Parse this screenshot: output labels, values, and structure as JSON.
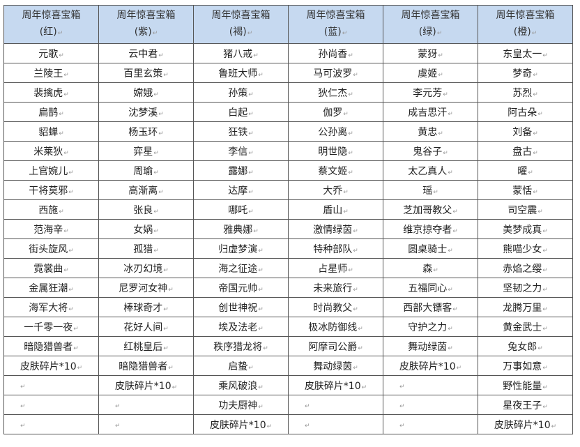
{
  "table": {
    "headers": [
      {
        "title": "周年惊喜宝箱",
        "sub": "(红)"
      },
      {
        "title": "周年惊喜宝箱",
        "sub": "(紫)"
      },
      {
        "title": "周年惊喜宝箱",
        "sub": "(褐)"
      },
      {
        "title": "周年惊喜宝箱",
        "sub": "(蓝)"
      },
      {
        "title": "周年惊喜宝箱",
        "sub": "(绿)"
      },
      {
        "title": "周年惊喜宝箱",
        "sub": "(橙)"
      }
    ],
    "columns": [
      [
        "元歌",
        "兰陵王",
        "裴擒虎",
        "扁鹊",
        "貂蝉",
        "米莱狄",
        "上官婉儿",
        "干将莫邪",
        "西施",
        "范海辛",
        "街头旋风",
        "霓裳曲",
        "金属狂潮",
        "海军大将",
        "一千零一夜",
        "暗隐猎兽者",
        "皮肤碎片*10",
        "",
        "",
        ""
      ],
      [
        "云中君",
        "百里玄策",
        "嫦娥",
        "沈梦溪",
        "杨玉环",
        "弈星",
        "周瑜",
        "高渐离",
        "张良",
        "女娲",
        "孤猎",
        "冰刃幻境",
        "尼罗河女神",
        "棒球奇才",
        "花好人间",
        "红桃皇后",
        "暗隐猎兽者",
        "皮肤碎片*10",
        "",
        ""
      ],
      [
        "猪八戒",
        "鲁班大师",
        "孙策",
        "白起",
        "狂铁",
        "李信",
        "露娜",
        "达摩",
        "哪吒",
        "雅典娜",
        "归虚梦演",
        "海之征途",
        "帝国元帅",
        "创世神祝",
        "埃及法老",
        "秩序猎龙将",
        "启蛰",
        "乘风破浪",
        "功夫厨神",
        "皮肤碎片*10"
      ],
      [
        "孙尚香",
        "马可波罗",
        "狄仁杰",
        "伽罗",
        "公孙离",
        "明世隐",
        "蔡文姬",
        "大乔",
        "盾山",
        "激情绿茵",
        "特种部队",
        "占星师",
        "未来旅行",
        "时尚教父",
        "极冰防御线",
        "阿摩司公爵",
        "舞动绿茵",
        "皮肤碎片*10",
        "",
        ""
      ],
      [
        "蒙犽",
        "虞姬",
        "李元芳",
        "成吉思汗",
        "黄忠",
        "鬼谷子",
        "太乙真人",
        "瑶",
        "芝加哥教父",
        "维京掠夺者",
        "圆桌骑士",
        "森",
        "五福同心",
        "西部大镖客",
        "守护之力",
        "舞动绿茵",
        "皮肤碎片*10",
        "",
        "",
        ""
      ],
      [
        "东皇太一",
        "梦奇",
        "苏烈",
        "阿古朵",
        "刘备",
        "盘古",
        "曜",
        "蒙恬",
        "司空震",
        "美梦成真",
        "熊喵少女",
        "赤焰之缨",
        "坚韧之力",
        "龙腾万里",
        "黄金武士",
        "兔女郎",
        "万事如意",
        "野性能量",
        "星夜王子",
        "皮肤碎片*10"
      ]
    ]
  },
  "colors": {
    "header_bg": "#c6d9f0",
    "border": "#555555"
  }
}
